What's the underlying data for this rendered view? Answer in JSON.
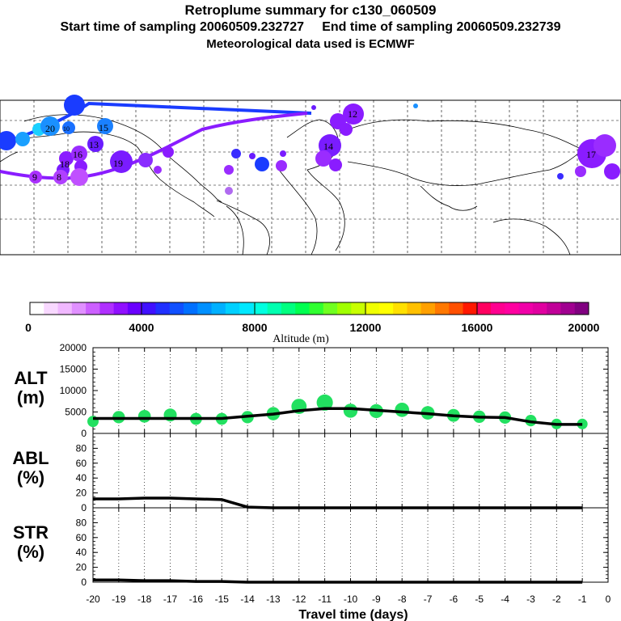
{
  "header": {
    "title": "Retroplume summary for c130_060509",
    "sampling": "Start time of sampling 20060509.232727     End time of sampling 20060509.232739",
    "met": "Meteorological data used is ECMWF"
  },
  "colorbar": {
    "ticks": [
      "0",
      "4000",
      "8000",
      "12000",
      "16000",
      "20000"
    ],
    "label": "Altitude (m)"
  },
  "colors": {
    "trajectory_blue": "#1a3cff",
    "trajectory_purple": "#8a1cff",
    "point_green": "#22e060",
    "line": "#000000"
  },
  "chart_data": [
    {
      "type": "scatter",
      "name": "ALT",
      "ylabel": "ALT\n(m)",
      "ylim": [
        0,
        20000
      ],
      "yticks": [
        "20000",
        "15000",
        "10000",
        "5000",
        "0"
      ],
      "x": [
        -20,
        -19,
        -18,
        -17,
        -16,
        -15,
        -14,
        -13,
        -12,
        -11,
        -10,
        -9,
        -8,
        -7,
        -6,
        -5,
        -4,
        -3,
        -2,
        -1
      ],
      "line_values": [
        3500,
        3500,
        3500,
        3500,
        3500,
        3500,
        4000,
        4500,
        5300,
        5800,
        5800,
        5400,
        5000,
        4600,
        4100,
        3800,
        3700,
        2700,
        2100,
        2100
      ],
      "point_values": [
        2800,
        3800,
        4000,
        4300,
        3400,
        3400,
        3800,
        4600,
        6300,
        7200,
        5300,
        5200,
        5500,
        4800,
        4200,
        3900,
        3700,
        3000,
        2200,
        2200
      ]
    },
    {
      "type": "line",
      "name": "ABL",
      "ylabel": "ABL\n(%)",
      "ylim": [
        0,
        100
      ],
      "yticks": [
        "80",
        "60",
        "40",
        "20",
        "0"
      ],
      "x": [
        -20,
        -19,
        -18,
        -17,
        -16,
        -15,
        -14,
        -13,
        -12,
        -11,
        -10,
        -9,
        -8,
        -7,
        -6,
        -5,
        -4,
        -3,
        -2,
        -1
      ],
      "values": [
        12,
        12,
        13,
        13,
        12,
        11,
        1,
        0,
        0,
        0,
        0,
        0,
        0,
        0,
        0,
        0,
        0,
        0,
        0,
        0
      ]
    },
    {
      "type": "line",
      "name": "STR",
      "ylabel": "STR\n(%)",
      "ylim": [
        0,
        100
      ],
      "yticks": [
        "80",
        "60",
        "40",
        "20",
        "0"
      ],
      "x": [
        -20,
        -19,
        -18,
        -17,
        -16,
        -15,
        -14,
        -13,
        -12,
        -11,
        -10,
        -9,
        -8,
        -7,
        -6,
        -5,
        -4,
        -3,
        -2,
        -1
      ],
      "values": [
        3,
        3,
        2,
        2,
        1,
        1,
        0,
        0,
        0,
        0,
        0,
        0,
        0,
        0,
        0,
        0,
        0,
        0,
        0,
        0
      ]
    }
  ],
  "xaxis": {
    "ticks": [
      "-20",
      "-19",
      "-18",
      "-17",
      "-16",
      "-15",
      "-14",
      "-13",
      "-12",
      "-11",
      "-10",
      "-9",
      "-8",
      "-7",
      "-6",
      "-5",
      "-4",
      "-3",
      "-2",
      "-1",
      "0"
    ],
    "label": "Travel time (days)"
  },
  "map": {
    "labels": [
      "12",
      "20",
      "16",
      "19",
      "13",
      "15",
      "18",
      "9",
      "8",
      "10",
      "14",
      "17"
    ]
  }
}
